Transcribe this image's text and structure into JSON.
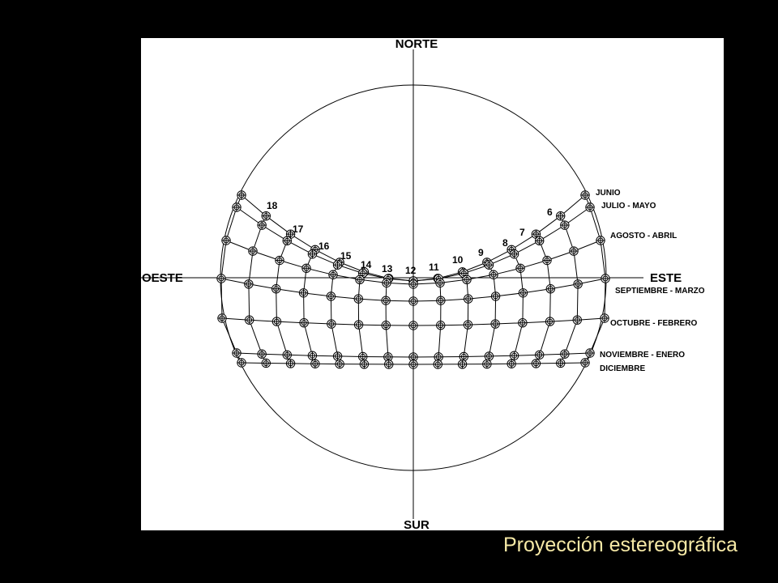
{
  "caption": "Proyección estereográfica",
  "colors": {
    "background": "#000000",
    "panel": "#ffffff",
    "ink": "#000000",
    "caption": "#f6e9a6"
  },
  "diagram": {
    "cardinals": {
      "north": "NORTE",
      "south": "SUR",
      "east": "ESTE",
      "west": "OESTE"
    },
    "hours": [
      "18",
      "17",
      "16",
      "15",
      "14",
      "13",
      "12",
      "11",
      "10",
      "9",
      "8",
      "7",
      "6"
    ],
    "months": [
      "JUNIO",
      "JULIO - MAYO",
      "AGOSTO - ABRIL",
      "SEPTIEMBRE - MARZO",
      "OCTUBRE - FEBRERO",
      "NOVIEMBRE - ENERO",
      "DICIEMBRE"
    ]
  }
}
